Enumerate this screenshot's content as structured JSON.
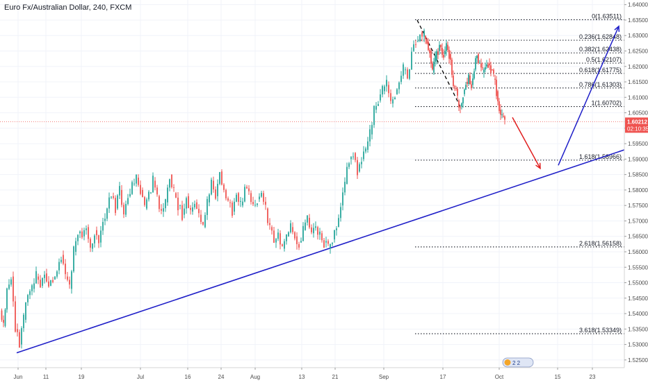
{
  "header": {
    "title": "Euro Fx/Australian Dollar, 240, FXCM"
  },
  "price_badge": {
    "price": "1.60212",
    "countdown": "02:10:35"
  },
  "events": {
    "label": "2 2"
  },
  "colors": {
    "up": "#26a69a",
    "down": "#ef5350",
    "trend": "#1f1fc8",
    "fib": "#131722",
    "price_line": "#ef5350",
    "badge": "#ef5350",
    "grid": "#f0f3fa",
    "axis_text": "#4a4a4a"
  },
  "chart_data": {
    "type": "candlestick",
    "title": "Euro Fx/Australian Dollar, 240, FXCM",
    "ylim": [
      1.5225,
      1.6415
    ],
    "y_ticks": [
      "1.52500",
      "1.53000",
      "1.53500",
      "1.54000",
      "1.54500",
      "1.55000",
      "1.55500",
      "1.56000",
      "1.56500",
      "1.57000",
      "1.57500",
      "1.58000",
      "1.58500",
      "1.59000",
      "1.59500",
      "1.60000",
      "1.60500",
      "1.61000",
      "1.61500",
      "1.62000",
      "1.62500",
      "1.63000",
      "1.63500",
      "1.64000"
    ],
    "x_ticks": [
      "Jun",
      "11",
      "19",
      "Jul",
      "16",
      "24",
      "Aug",
      "13",
      "21",
      "Sep",
      "17",
      "Oct",
      "15",
      "23"
    ],
    "last_price": 1.60212,
    "fib_levels": [
      {
        "label": "0(1.63511)",
        "value": 1.63511
      },
      {
        "label": "0.236(1.62848)",
        "value": 1.62848
      },
      {
        "label": "0.382(1.62438)",
        "value": 1.62438
      },
      {
        "label": "0.5(1.62107)",
        "value": 1.62107
      },
      {
        "label": "0.618(1.61775)",
        "value": 1.61775
      },
      {
        "label": "0.786(1.61303)",
        "value": 1.61303
      },
      {
        "label": "1(1.60702)",
        "value": 1.60702
      },
      {
        "label": "1.618(1.58966)",
        "value": 1.58966
      },
      {
        "label": "2.618(1.56158)",
        "value": 1.56158
      },
      {
        "label": "3.618(1.53349)",
        "value": 1.53349
      }
    ],
    "price_path": [
      [
        0,
        1.541
      ],
      [
        5,
        1.536
      ],
      [
        10,
        1.548
      ],
      [
        16,
        1.552
      ],
      [
        22,
        1.535
      ],
      [
        28,
        1.53
      ],
      [
        34,
        1.538
      ],
      [
        40,
        1.546
      ],
      [
        46,
        1.548
      ],
      [
        52,
        1.552
      ],
      [
        58,
        1.549
      ],
      [
        64,
        1.553
      ],
      [
        70,
        1.549
      ],
      [
        76,
        1.551
      ],
      [
        82,
        1.554
      ],
      [
        88,
        1.559
      ],
      [
        94,
        1.552
      ],
      [
        100,
        1.548
      ],
      [
        106,
        1.56
      ],
      [
        112,
        1.566
      ],
      [
        118,
        1.565
      ],
      [
        124,
        1.568
      ],
      [
        130,
        1.561
      ],
      [
        136,
        1.567
      ],
      [
        142,
        1.563
      ],
      [
        148,
        1.57
      ],
      [
        154,
        1.574
      ],
      [
        160,
        1.578
      ],
      [
        166,
        1.574
      ],
      [
        172,
        1.58
      ],
      [
        178,
        1.572
      ],
      [
        184,
        1.578
      ],
      [
        190,
        1.582
      ],
      [
        196,
        1.584
      ],
      [
        202,
        1.58
      ],
      [
        208,
        1.574
      ],
      [
        214,
        1.579
      ],
      [
        220,
        1.583
      ],
      [
        226,
        1.578
      ],
      [
        232,
        1.573
      ],
      [
        238,
        1.576
      ],
      [
        244,
        1.585
      ],
      [
        250,
        1.579
      ],
      [
        256,
        1.575
      ],
      [
        262,
        1.572
      ],
      [
        268,
        1.578
      ],
      [
        274,
        1.573
      ],
      [
        280,
        1.576
      ],
      [
        286,
        1.572
      ],
      [
        292,
        1.568
      ],
      [
        298,
        1.576
      ],
      [
        304,
        1.583
      ],
      [
        310,
        1.578
      ],
      [
        316,
        1.586
      ],
      [
        322,
        1.58
      ],
      [
        328,
        1.576
      ],
      [
        334,
        1.573
      ],
      [
        340,
        1.579
      ],
      [
        346,
        1.575
      ],
      [
        352,
        1.581
      ],
      [
        358,
        1.579
      ],
      [
        364,
        1.575
      ],
      [
        370,
        1.577
      ],
      [
        376,
        1.579
      ],
      [
        382,
        1.574
      ],
      [
        388,
        1.568
      ],
      [
        394,
        1.563
      ],
      [
        400,
        1.566
      ],
      [
        406,
        1.561
      ],
      [
        412,
        1.565
      ],
      [
        418,
        1.568
      ],
      [
        424,
        1.565
      ],
      [
        430,
        1.563
      ],
      [
        436,
        1.567
      ],
      [
        442,
        1.571
      ],
      [
        448,
        1.566
      ],
      [
        454,
        1.568
      ],
      [
        460,
        1.566
      ],
      [
        466,
        1.563
      ],
      [
        472,
        1.561
      ],
      [
        478,
        1.564
      ],
      [
        484,
        1.568
      ],
      [
        490,
        1.575
      ],
      [
        496,
        1.582
      ],
      [
        502,
        1.59
      ],
      [
        508,
        1.592
      ],
      [
        514,
        1.586
      ],
      [
        520,
        1.59
      ],
      [
        526,
        1.593
      ],
      [
        532,
        1.598
      ],
      [
        538,
        1.606
      ],
      [
        544,
        1.609
      ],
      [
        550,
        1.612
      ],
      [
        556,
        1.614
      ],
      [
        562,
        1.608
      ],
      [
        568,
        1.611
      ],
      [
        574,
        1.615
      ],
      [
        580,
        1.619
      ],
      [
        586,
        1.616
      ],
      [
        592,
        1.625
      ],
      [
        598,
        1.628
      ],
      [
        604,
        1.631
      ],
      [
        610,
        1.63
      ],
      [
        614,
        1.628
      ],
      [
        618,
        1.625
      ],
      [
        622,
        1.618
      ],
      [
        626,
        1.622
      ],
      [
        630,
        1.625
      ],
      [
        634,
        1.626
      ],
      [
        638,
        1.624
      ],
      [
        642,
        1.627
      ],
      [
        646,
        1.624
      ],
      [
        650,
        1.617
      ],
      [
        654,
        1.613
      ],
      [
        658,
        1.609
      ],
      [
        662,
        1.607
      ],
      [
        666,
        1.611
      ],
      [
        670,
        1.615
      ],
      [
        674,
        1.617
      ],
      [
        678,
        1.614
      ],
      [
        682,
        1.619
      ],
      [
        686,
        1.624
      ],
      [
        690,
        1.621
      ],
      [
        694,
        1.618
      ],
      [
        698,
        1.62
      ],
      [
        702,
        1.621
      ],
      [
        706,
        1.619
      ],
      [
        710,
        1.616
      ],
      [
        714,
        1.612
      ],
      [
        718,
        1.606
      ],
      [
        722,
        1.604
      ],
      [
        726,
        1.602
      ]
    ],
    "trend_line": {
      "from": [
        "Jun",
        1.5273
      ],
      "to": [
        "beyond 23",
        1.593
      ]
    },
    "arrows": [
      {
        "color": "red",
        "from": 1.6035,
        "to": 1.587
      },
      {
        "color": "blue",
        "from": 1.588,
        "to": 1.633
      }
    ]
  }
}
